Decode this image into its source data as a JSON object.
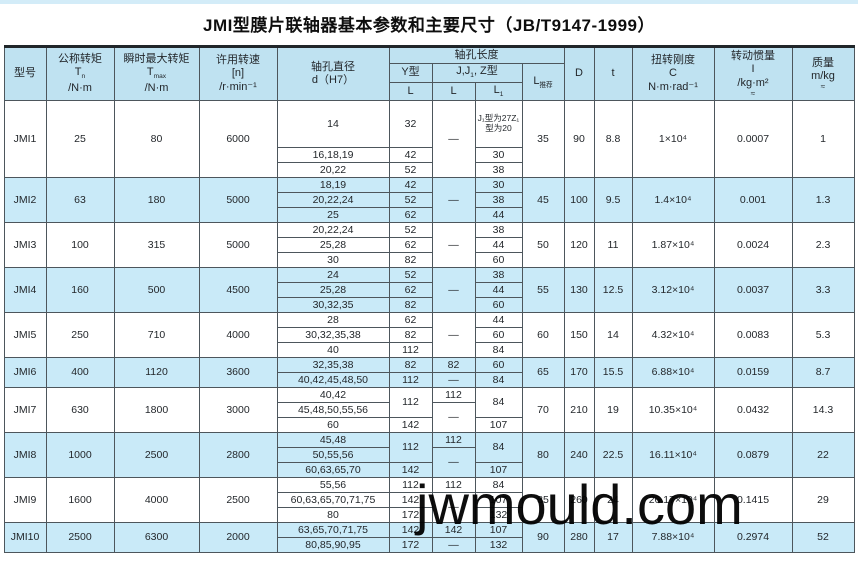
{
  "page": {
    "title": "JMI型膜片联轴器基本参数和主要尺寸（JB/T9147-1999）",
    "watermark": "jwmould.com"
  },
  "table": {
    "header": {
      "model": "型号",
      "tn": {
        "line1": "公称转矩",
        "sym": "T",
        "sub": "n",
        "unit": "/N·m"
      },
      "tmax": {
        "line1": "瞬时最大转矩",
        "sym": "T",
        "sub": "max",
        "unit": "/N·m"
      },
      "speed": {
        "line1": "许用转速",
        "line2": "[n]",
        "unit": "/r·min⁻¹"
      },
      "bore_dia": {
        "line1": "轴孔直径",
        "line2": "d（H7）"
      },
      "bore_len": "轴孔长度",
      "y_type": "Y型",
      "jjz_type": {
        "pre": "J,J",
        "sub": "1",
        "post": ", Z型"
      },
      "L": "L",
      "L1": {
        "sym": "L",
        "sub": "1"
      },
      "L_rec": {
        "sym": "L",
        "sub": "推荐"
      },
      "D": "D",
      "t": "t",
      "stiffness": {
        "line1": "扭转刚度",
        "line2": "C",
        "unit": "N·m·rad⁻¹"
      },
      "inertia": {
        "line1": "转动惯量",
        "line2": "I",
        "unit": "/kg·m²",
        "approx": "≈"
      },
      "mass": {
        "line1": "质量",
        "line2": "m/kg",
        "approx": "≈"
      }
    },
    "models": [
      {
        "model": "JMI1",
        "tn": "25",
        "tmax": "80",
        "speed": "6000",
        "sub_rows": [
          [
            {
              "t": "14"
            },
            {
              "t": "32"
            },
            {
              "t": "—",
              "rs": 3
            },
            {
              "t": "J₁型为27Z₁型为20",
              "cls": "tiny"
            }
          ],
          [
            {
              "t": "16,18,19"
            },
            {
              "t": "42"
            },
            null,
            {
              "t": "30"
            }
          ],
          [
            {
              "t": "20,22"
            },
            {
              "t": "52"
            },
            null,
            {
              "t": "38"
            }
          ]
        ],
        "l_rec": "35",
        "D": "90",
        "t": "8.8",
        "C": "1×10⁴",
        "I": "0.0007",
        "mass": "1"
      },
      {
        "model": "JMI2",
        "tn": "63",
        "tmax": "180",
        "speed": "5000",
        "sub_rows": [
          [
            {
              "t": "18,19"
            },
            {
              "t": "42"
            },
            {
              "t": "—",
              "rs": 3
            },
            {
              "t": "30"
            }
          ],
          [
            {
              "t": "20,22,24"
            },
            {
              "t": "52"
            },
            null,
            {
              "t": "38"
            }
          ],
          [
            {
              "t": "25"
            },
            {
              "t": "62"
            },
            null,
            {
              "t": "44"
            }
          ]
        ],
        "l_rec": "45",
        "D": "100",
        "t": "9.5",
        "C": "1.4×10⁴",
        "I": "0.001",
        "mass": "1.3"
      },
      {
        "model": "JMI3",
        "tn": "100",
        "tmax": "315",
        "speed": "5000",
        "sub_rows": [
          [
            {
              "t": "20,22,24"
            },
            {
              "t": "52"
            },
            {
              "t": "—",
              "rs": 3
            },
            {
              "t": "38"
            }
          ],
          [
            {
              "t": "25,28"
            },
            {
              "t": "62"
            },
            null,
            {
              "t": "44"
            }
          ],
          [
            {
              "t": "30"
            },
            {
              "t": "82"
            },
            null,
            {
              "t": "60"
            }
          ]
        ],
        "l_rec": "50",
        "D": "120",
        "t": "11",
        "C": "1.87×10⁴",
        "I": "0.0024",
        "mass": "2.3"
      },
      {
        "model": "JMI4",
        "tn": "160",
        "tmax": "500",
        "speed": "4500",
        "sub_rows": [
          [
            {
              "t": "24"
            },
            {
              "t": "52"
            },
            {
              "t": "—",
              "rs": 3
            },
            {
              "t": "38"
            }
          ],
          [
            {
              "t": "25,28"
            },
            {
              "t": "62"
            },
            null,
            {
              "t": "44"
            }
          ],
          [
            {
              "t": "30,32,35"
            },
            {
              "t": "82"
            },
            null,
            {
              "t": "60"
            }
          ]
        ],
        "l_rec": "55",
        "D": "130",
        "t": "12.5",
        "C": "3.12×10⁴",
        "I": "0.0037",
        "mass": "3.3"
      },
      {
        "model": "JMI5",
        "tn": "250",
        "tmax": "710",
        "speed": "4000",
        "sub_rows": [
          [
            {
              "t": "28"
            },
            {
              "t": "62"
            },
            {
              "t": "—",
              "rs": 3
            },
            {
              "t": "44"
            }
          ],
          [
            {
              "t": "30,32,35,38"
            },
            {
              "t": "82"
            },
            null,
            {
              "t": "60"
            }
          ],
          [
            {
              "t": "40"
            },
            {
              "t": "112"
            },
            null,
            {
              "t": "84"
            }
          ]
        ],
        "l_rec": "60",
        "D": "150",
        "t": "14",
        "C": "4.32×10⁴",
        "I": "0.0083",
        "mass": "5.3"
      },
      {
        "model": "JMI6",
        "tn": "400",
        "tmax": "1120",
        "speed": "3600",
        "sub_rows": [
          [
            {
              "t": "32,35,38"
            },
            {
              "t": "82"
            },
            {
              "t": "82"
            },
            {
              "t": "60"
            }
          ],
          [
            {
              "t": "40,42,45,48,50"
            },
            {
              "t": "112"
            },
            {
              "t": "—"
            },
            {
              "t": "84"
            }
          ]
        ],
        "l_rec": "65",
        "D": "170",
        "t": "15.5",
        "C": "6.88×10⁴",
        "I": "0.0159",
        "mass": "8.7"
      },
      {
        "model": "JMI7",
        "tn": "630",
        "tmax": "1800",
        "speed": "3000",
        "sub_rows": [
          [
            {
              "t": "40,42"
            },
            {
              "t": "112",
              "rs": 2
            },
            {
              "t": "112"
            },
            {
              "t": "84",
              "rs": 2
            }
          ],
          [
            {
              "t": "45,48,50,55,56"
            },
            null,
            {
              "t": "—",
              "rs": 2
            },
            null
          ],
          [
            {
              "t": "60"
            },
            {
              "t": "142"
            },
            null,
            {
              "t": "107"
            }
          ]
        ],
        "l_rec": "70",
        "D": "210",
        "t": "19",
        "C": "10.35×10⁴",
        "I": "0.0432",
        "mass": "14.3"
      },
      {
        "model": "JMI8",
        "tn": "1000",
        "tmax": "2500",
        "speed": "2800",
        "sub_rows": [
          [
            {
              "t": "45,48"
            },
            {
              "t": "112",
              "rs": 2
            },
            {
              "t": "112"
            },
            {
              "t": "84",
              "rs": 2
            }
          ],
          [
            {
              "t": "50,55,56"
            },
            null,
            {
              "t": "—",
              "rs": 2
            },
            null
          ],
          [
            {
              "t": "60,63,65,70"
            },
            {
              "t": "142"
            },
            null,
            {
              "t": "107"
            }
          ]
        ],
        "l_rec": "80",
        "D": "240",
        "t": "22.5",
        "C": "16.11×10⁴",
        "I": "0.0879",
        "mass": "22"
      },
      {
        "model": "JMI9",
        "tn": "1600",
        "tmax": "4000",
        "speed": "2500",
        "sub_rows": [
          [
            {
              "t": "55,56"
            },
            {
              "t": "112"
            },
            {
              "t": "112"
            },
            {
              "t": "84"
            }
          ],
          [
            {
              "t": "60,63,65,70,71,75"
            },
            {
              "t": "142"
            },
            {
              "t": "—",
              "rs": 2
            },
            {
              "t": "107"
            }
          ],
          [
            {
              "t": "80"
            },
            {
              "t": "172"
            },
            null,
            {
              "t": "132"
            }
          ]
        ],
        "l_rec": "85",
        "D": "260",
        "t": "24",
        "C": "26.17×10⁴",
        "I": "0.1415",
        "mass": "29"
      },
      {
        "model": "JMI10",
        "tn": "2500",
        "tmax": "6300",
        "speed": "2000",
        "sub_rows": [
          [
            {
              "t": "63,65,70,71,75"
            },
            {
              "t": "142"
            },
            {
              "t": "142"
            },
            {
              "t": "107"
            }
          ],
          [
            {
              "t": "80,85,90,95"
            },
            {
              "t": "172"
            },
            {
              "t": "—"
            },
            {
              "t": "132"
            }
          ]
        ],
        "l_rec": "90",
        "D": "280",
        "t": "17",
        "C": "7.88×10⁴",
        "I": "0.2974",
        "mass": "52"
      }
    ]
  }
}
